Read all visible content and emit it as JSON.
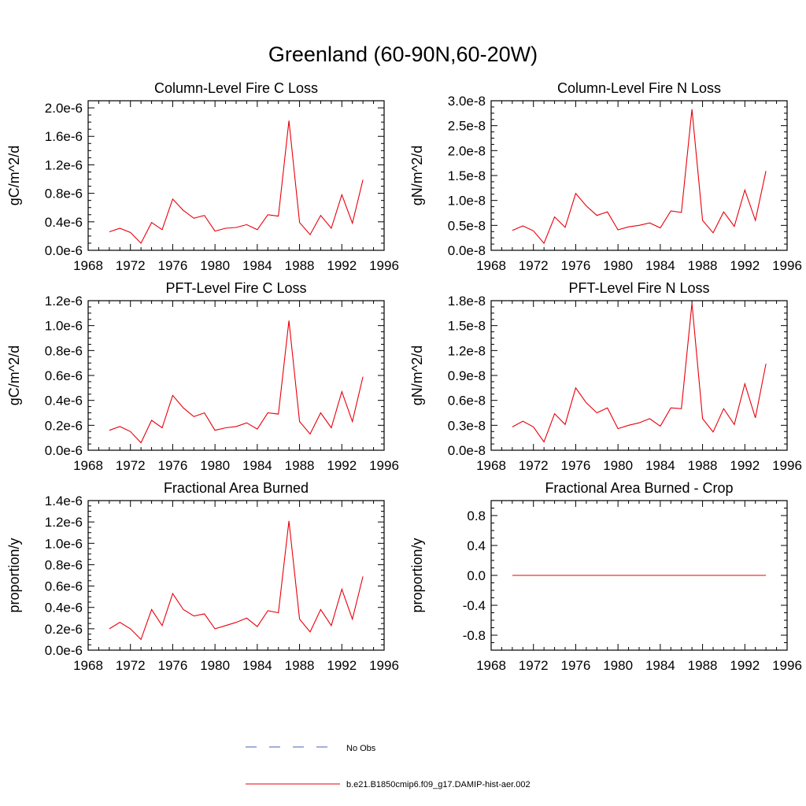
{
  "figure": {
    "title": "Greenland (60-90N,60-20W)"
  },
  "legend": {
    "entries": [
      {
        "label": "No Obs",
        "style": "dashed",
        "color": "#4a5fb0"
      },
      {
        "label": "b.e21.B1850cmip6.f09_g17.DAMIP-hist-aer.002",
        "style": "solid",
        "color": "#e8000b"
      }
    ]
  },
  "chart_data": [
    {
      "type": "line",
      "title": "Column-Level Fire C Loss",
      "ylabel": "gC/m^2/d",
      "xlim": [
        1968,
        1996
      ],
      "xticks": [
        "1968",
        "1972",
        "1976",
        "1980",
        "1984",
        "1988",
        "1992",
        "1996"
      ],
      "ylim": [
        0,
        2.1e-06
      ],
      "yticks": [
        "0.0e-6",
        "0.4e-6",
        "0.8e-6",
        "1.2e-6",
        "1.6e-6",
        "2.0e-6"
      ],
      "ytick_values": [
        0,
        4e-07,
        8e-07,
        1.2e-06,
        1.6e-06,
        2e-06
      ],
      "x": [
        1970,
        1971,
        1972,
        1973,
        1974,
        1975,
        1976,
        1977,
        1978,
        1979,
        1980,
        1981,
        1982,
        1983,
        1984,
        1985,
        1986,
        1987,
        1988,
        1989,
        1990,
        1991,
        1992,
        1993,
        1994
      ],
      "series": [
        {
          "color": "#e8000b",
          "values": [
            2.6e-07,
            3.1e-07,
            2.5e-07,
            1e-07,
            3.9e-07,
            2.9e-07,
            7.2e-07,
            5.6e-07,
            4.5e-07,
            4.9e-07,
            2.7e-07,
            3.1e-07,
            3.2e-07,
            3.6e-07,
            2.9e-07,
            5e-07,
            4.8e-07,
            1.82e-06,
            3.9e-07,
            2.2e-07,
            4.9e-07,
            3.1e-07,
            7.8e-07,
            3.8e-07,
            9.9e-07
          ]
        }
      ],
      "grid": false
    },
    {
      "type": "line",
      "title": "Column-Level Fire N Loss",
      "ylabel": "gN/m^2/d",
      "xlim": [
        1968,
        1996
      ],
      "xticks": [
        "1968",
        "1972",
        "1976",
        "1980",
        "1984",
        "1988",
        "1992",
        "1996"
      ],
      "ylim": [
        0,
        3e-08
      ],
      "yticks": [
        "0.0e-8",
        "0.5e-8",
        "1.0e-8",
        "1.5e-8",
        "2.0e-8",
        "2.5e-8",
        "3.0e-8"
      ],
      "ytick_values": [
        0,
        5e-09,
        1e-08,
        1.5e-08,
        2e-08,
        2.5e-08,
        3e-08
      ],
      "x": [
        1970,
        1971,
        1972,
        1973,
        1974,
        1975,
        1976,
        1977,
        1978,
        1979,
        1980,
        1981,
        1982,
        1983,
        1984,
        1985,
        1986,
        1987,
        1988,
        1989,
        1990,
        1991,
        1992,
        1993,
        1994
      ],
      "series": [
        {
          "color": "#e8000b",
          "values": [
            4e-09,
            4.9e-09,
            3.9e-09,
            1.4e-09,
            6.7e-09,
            4.6e-09,
            1.14e-08,
            8.9e-09,
            7e-09,
            7.7e-09,
            4.1e-09,
            4.7e-09,
            5e-09,
            5.5e-09,
            4.5e-09,
            7.9e-09,
            7.6e-09,
            2.83e-08,
            6e-09,
            3.5e-09,
            7.7e-09,
            4.8e-09,
            1.21e-08,
            6e-09,
            1.59e-08
          ]
        }
      ],
      "grid": false
    },
    {
      "type": "line",
      "title": "PFT-Level Fire C Loss",
      "ylabel": "gC/m^2/d",
      "xlim": [
        1968,
        1996
      ],
      "xticks": [
        "1968",
        "1972",
        "1976",
        "1980",
        "1984",
        "1988",
        "1992",
        "1996"
      ],
      "ylim": [
        0,
        1.2e-06
      ],
      "yticks": [
        "0.0e-6",
        "0.2e-6",
        "0.4e-6",
        "0.6e-6",
        "0.8e-6",
        "1.0e-6",
        "1.2e-6"
      ],
      "ytick_values": [
        0,
        2e-07,
        4e-07,
        6e-07,
        8e-07,
        1e-06,
        1.2e-06
      ],
      "x": [
        1970,
        1971,
        1972,
        1973,
        1974,
        1975,
        1976,
        1977,
        1978,
        1979,
        1980,
        1981,
        1982,
        1983,
        1984,
        1985,
        1986,
        1987,
        1988,
        1989,
        1990,
        1991,
        1992,
        1993,
        1994
      ],
      "series": [
        {
          "color": "#e8000b",
          "values": [
            1.6e-07,
            1.9e-07,
            1.5e-07,
            6e-08,
            2.4e-07,
            1.8e-07,
            4.4e-07,
            3.4e-07,
            2.7e-07,
            3e-07,
            1.6e-07,
            1.8e-07,
            1.9e-07,
            2.2e-07,
            1.7e-07,
            3e-07,
            2.9e-07,
            1.04e-06,
            2.3e-07,
            1.3e-07,
            3e-07,
            1.8e-07,
            4.7e-07,
            2.3e-07,
            5.9e-07
          ]
        }
      ],
      "grid": false
    },
    {
      "type": "line",
      "title": "PFT-Level Fire N Loss",
      "ylabel": "gN/m^2/d",
      "xlim": [
        1968,
        1996
      ],
      "xticks": [
        "1968",
        "1972",
        "1976",
        "1980",
        "1984",
        "1988",
        "1992",
        "1996"
      ],
      "ylim": [
        0,
        1.8e-08
      ],
      "yticks": [
        "0.0e-8",
        "0.3e-8",
        "0.6e-8",
        "0.9e-8",
        "1.2e-8",
        "1.5e-8",
        "1.8e-8"
      ],
      "ytick_values": [
        0,
        3e-09,
        6e-09,
        9e-09,
        1.2e-08,
        1.5e-08,
        1.8e-08
      ],
      "x": [
        1970,
        1971,
        1972,
        1973,
        1974,
        1975,
        1976,
        1977,
        1978,
        1979,
        1980,
        1981,
        1982,
        1983,
        1984,
        1985,
        1986,
        1987,
        1988,
        1989,
        1990,
        1991,
        1992,
        1993,
        1994
      ],
      "series": [
        {
          "color": "#e8000b",
          "values": [
            2.8e-09,
            3.5e-09,
            2.8e-09,
            1e-09,
            4.4e-09,
            3.1e-09,
            7.5e-09,
            5.7e-09,
            4.5e-09,
            5.1e-09,
            2.6e-09,
            3e-09,
            3.3e-09,
            3.8e-09,
            2.9e-09,
            5.1e-09,
            5e-09,
            1.77e-08,
            3.8e-09,
            2.2e-09,
            5e-09,
            3.1e-09,
            8e-09,
            3.9e-09,
            1.04e-08
          ]
        }
      ],
      "grid": false
    },
    {
      "type": "line",
      "title": "Fractional Area Burned",
      "ylabel": "proportion/y",
      "xlim": [
        1968,
        1996
      ],
      "xticks": [
        "1968",
        "1972",
        "1976",
        "1980",
        "1984",
        "1988",
        "1992",
        "1996"
      ],
      "ylim": [
        0,
        1.4e-06
      ],
      "yticks": [
        "0.0e-6",
        "0.2e-6",
        "0.4e-6",
        "0.6e-6",
        "0.8e-6",
        "1.0e-6",
        "1.2e-6",
        "1.4e-6"
      ],
      "ytick_values": [
        0,
        2e-07,
        4e-07,
        6e-07,
        8e-07,
        1e-06,
        1.2e-06,
        1.4e-06
      ],
      "x": [
        1970,
        1971,
        1972,
        1973,
        1974,
        1975,
        1976,
        1977,
        1978,
        1979,
        1980,
        1981,
        1982,
        1983,
        1984,
        1985,
        1986,
        1987,
        1988,
        1989,
        1990,
        1991,
        1992,
        1993,
        1994
      ],
      "series": [
        {
          "color": "#e8000b",
          "values": [
            2e-07,
            2.6e-07,
            2e-07,
            1e-07,
            3.8e-07,
            2.3e-07,
            5.3e-07,
            3.8e-07,
            3.2e-07,
            3.4e-07,
            2e-07,
            2.3e-07,
            2.6e-07,
            3e-07,
            2.2e-07,
            3.7e-07,
            3.5e-07,
            1.21e-06,
            2.9e-07,
            1.7e-07,
            3.8e-07,
            2.3e-07,
            5.7e-07,
            2.9e-07,
            6.9e-07
          ]
        }
      ],
      "grid": false
    },
    {
      "type": "line",
      "title": "Fractional Area Burned - Crop",
      "ylabel": "proportion/y",
      "xlim": [
        1968,
        1996
      ],
      "xticks": [
        "1968",
        "1972",
        "1976",
        "1980",
        "1984",
        "1988",
        "1992",
        "1996"
      ],
      "ylim": [
        -1.0,
        1.0
      ],
      "yticks": [
        "-0.8",
        "-0.4",
        "0.0",
        "0.4",
        "0.8"
      ],
      "ytick_values": [
        -0.8,
        -0.4,
        0,
        0.4,
        0.8
      ],
      "x": [
        1970,
        1971,
        1972,
        1973,
        1974,
        1975,
        1976,
        1977,
        1978,
        1979,
        1980,
        1981,
        1982,
        1983,
        1984,
        1985,
        1986,
        1987,
        1988,
        1989,
        1990,
        1991,
        1992,
        1993,
        1994
      ],
      "series": [
        {
          "color": "#e8000b",
          "values": [
            0,
            0,
            0,
            0,
            0,
            0,
            0,
            0,
            0,
            0,
            0,
            0,
            0,
            0,
            0,
            0,
            0,
            0,
            0,
            0,
            0,
            0,
            0,
            0,
            0
          ]
        }
      ],
      "grid": false
    }
  ]
}
